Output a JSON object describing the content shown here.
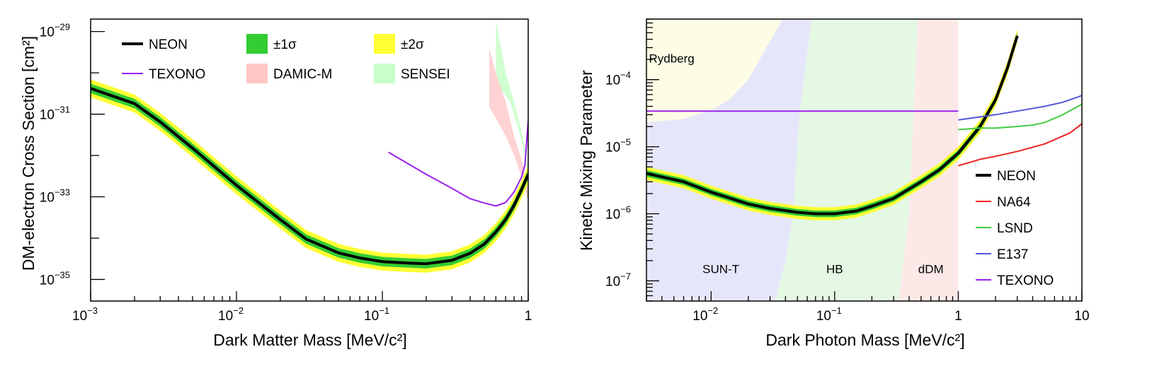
{
  "chart_data": [
    {
      "type": "line",
      "xlabel": "Dark Matter Mass [MeV/c²]",
      "ylabel": "DM-electron Cross Section [cm²]",
      "xscale": "log",
      "yscale": "log",
      "xlim": [
        0.001,
        1
      ],
      "ylim": [
        3e-36,
        2e-29
      ],
      "x_ticks": [
        {
          "v": 0.001,
          "base": "10",
          "exp": "−3"
        },
        {
          "v": 0.01,
          "base": "10",
          "exp": "−2"
        },
        {
          "v": 0.1,
          "base": "10",
          "exp": "−1"
        },
        {
          "v": 1,
          "base": "1",
          "exp": ""
        }
      ],
      "y_ticks": [
        {
          "v": 1e-29,
          "base": "10",
          "exp": "−29"
        },
        {
          "v": 1e-31,
          "base": "10",
          "exp": "−31"
        },
        {
          "v": 1e-33,
          "base": "10",
          "exp": "−33"
        },
        {
          "v": 1e-35,
          "base": "10",
          "exp": "−35"
        }
      ],
      "legend": {
        "placement": "top",
        "entries": [
          {
            "key": "neon",
            "label": "NEON",
            "kind": "line",
            "color": "#000000"
          },
          {
            "key": "s1",
            "label": "±1σ",
            "kind": "box",
            "color": "#33cc33"
          },
          {
            "key": "s2",
            "label": "±2σ",
            "kind": "box",
            "color": "#ffff33"
          },
          {
            "key": "texono",
            "label": "TEXONO",
            "kind": "line",
            "color": "#9922ee"
          },
          {
            "key": "damic",
            "label": "DAMIC-M",
            "kind": "box",
            "color": "#ffc8c8"
          },
          {
            "key": "sensei",
            "label": "SENSEI",
            "kind": "box",
            "color": "#c8ffc8"
          }
        ]
      },
      "bands": [
        {
          "name": "SENSEI",
          "color": "#c8ffc8",
          "opacity": 0.85,
          "upper": [
            [
              0.6,
              2e-29
            ],
            [
              0.7,
              1e-30
            ],
            [
              0.8,
              2e-31
            ],
            [
              0.9,
              4e-32
            ],
            [
              1.0,
              5e-33
            ]
          ],
          "lower": [
            [
              1.0,
              3e-33
            ],
            [
              0.92,
              1.5e-32
            ],
            [
              0.85,
              5e-32
            ],
            [
              0.75,
              2e-31
            ],
            [
              0.65,
              4e-31
            ],
            [
              0.6,
              1e-30
            ]
          ]
        },
        {
          "name": "DAMIC-M",
          "color": "#ffc8c8",
          "opacity": 0.8,
          "upper": [
            [
              0.54,
              4e-30
            ],
            [
              0.6,
              1e-30
            ],
            [
              0.7,
              2e-31
            ],
            [
              0.8,
              3e-32
            ],
            [
              0.9,
              8e-33
            ],
            [
              1.0,
              1.5e-33
            ]
          ],
          "lower": [
            [
              1.0,
              8e-34
            ],
            [
              0.9,
              3e-33
            ],
            [
              0.8,
              1e-32
            ],
            [
              0.7,
              3e-32
            ],
            [
              0.6,
              8e-32
            ],
            [
              0.54,
              1.5e-31
            ]
          ]
        }
      ],
      "series": [
        {
          "name": "NEON",
          "color": "#000000",
          "x": [
            0.001,
            0.002,
            0.003,
            0.005,
            0.007,
            0.01,
            0.02,
            0.03,
            0.05,
            0.07,
            0.1,
            0.15,
            0.2,
            0.3,
            0.4,
            0.5,
            0.6,
            0.7,
            0.8,
            0.9,
            1.0
          ],
          "y": [
            4.2e-31,
            1.8e-31,
            6.5e-32,
            1.5e-32,
            5.5e-33,
            1.9e-33,
            2.8e-34,
            9.5e-35,
            4.4e-35,
            3.3e-35,
            2.7e-35,
            2.5e-35,
            2.4e-35,
            2.9e-35,
            4.3e-35,
            7.2e-35,
            1.4e-34,
            2.8e-34,
            6.2e-34,
            1.5e-33,
            3.5e-33
          ],
          "sigma1_factor": 1.3,
          "sigma2_factor": 1.65
        },
        {
          "name": "TEXONO",
          "color": "#9922ee",
          "x": [
            0.11,
            0.2,
            0.3,
            0.4,
            0.5,
            0.6,
            0.7,
            0.8,
            0.9,
            0.95,
            1.0
          ],
          "y": [
            1.2e-32,
            3.5e-33,
            1.6e-33,
            9e-34,
            7.1e-34,
            6e-34,
            7.3e-34,
            1.3e-33,
            3e-33,
            6e-33,
            7e-32
          ]
        }
      ]
    },
    {
      "type": "line",
      "xlabel": "Dark Photon Mass [MeV/c²]",
      "ylabel": "Kinetic Mixing Parameter",
      "xscale": "log",
      "yscale": "log",
      "xlim": [
        0.003,
        10
      ],
      "ylim": [
        5e-08,
        0.0008
      ],
      "x_ticks": [
        {
          "v": 0.01,
          "base": "10",
          "exp": "−2"
        },
        {
          "v": 0.1,
          "base": "10",
          "exp": "−1"
        },
        {
          "v": 1,
          "base": "1",
          "exp": ""
        },
        {
          "v": 10,
          "base": "10",
          "exp": ""
        }
      ],
      "y_ticks": [
        {
          "v": 0.0001,
          "base": "10",
          "exp": "−4"
        },
        {
          "v": 1e-05,
          "base": "10",
          "exp": "−5"
        },
        {
          "v": 1e-06,
          "base": "10",
          "exp": "−6"
        },
        {
          "v": 1e-07,
          "base": "10",
          "exp": "−7"
        }
      ],
      "legend": {
        "placement": "bottom-right",
        "entries": [
          {
            "key": "neon",
            "label": "NEON",
            "kind": "line",
            "color": "#000000"
          },
          {
            "key": "na64",
            "label": "NA64",
            "kind": "line",
            "color": "#ee2222"
          },
          {
            "key": "lsnd",
            "label": "LSND",
            "kind": "line",
            "color": "#44cc44"
          },
          {
            "key": "e137",
            "label": "E137",
            "kind": "line",
            "color": "#5555dd"
          },
          {
            "key": "texono",
            "label": "TEXONO",
            "kind": "line",
            "color": "#9922ee"
          }
        ]
      },
      "regions": [
        {
          "name": "SUN-T",
          "label": "SUN-T",
          "color": "#e6e6fa",
          "points": [
            [
              0.003,
              5e-08
            ],
            [
              0.033,
              5e-08
            ],
            [
              0.04,
              2e-07
            ],
            [
              0.046,
              1e-06
            ],
            [
              0.052,
              3e-05
            ],
            [
              0.065,
              0.0008
            ],
            [
              0.003,
              0.0008
            ]
          ],
          "label_at": [
            0.012,
            1.3e-07
          ]
        },
        {
          "name": "Rydberg",
          "label": "Rydberg",
          "color": "#fdfde6",
          "points": [
            [
              0.003,
              0.0008
            ],
            [
              0.003,
              2.3e-05
            ],
            [
              0.006,
              2.6e-05
            ],
            [
              0.01,
              3.5e-05
            ],
            [
              0.014,
              5e-05
            ],
            [
              0.02,
              0.0001
            ],
            [
              0.028,
              0.0003
            ],
            [
              0.038,
              0.0008
            ]
          ],
          "label_at": [
            0.0048,
            0.00018
          ]
        },
        {
          "name": "HB",
          "label": "HB",
          "color": "#e4f8e4",
          "points": [
            [
              0.033,
              5e-08
            ],
            [
              0.33,
              5e-08
            ],
            [
              0.4,
              1e-06
            ],
            [
              0.47,
              0.0008
            ],
            [
              0.065,
              0.0008
            ],
            [
              0.052,
              3e-05
            ],
            [
              0.046,
              1e-06
            ],
            [
              0.04,
              2e-07
            ]
          ],
          "label_at": [
            0.1,
            1.3e-07
          ]
        },
        {
          "name": "dDM",
          "label": "dDM",
          "color": "#fde8e8",
          "points": [
            [
              0.33,
              5e-08
            ],
            [
              1.0,
              5e-08
            ],
            [
              1.0,
              0.0008
            ],
            [
              0.47,
              0.0008
            ],
            [
              0.4,
              1e-06
            ]
          ],
          "label_at": [
            0.6,
            1.3e-07
          ]
        }
      ],
      "series": [
        {
          "name": "NEON",
          "color": "#000000",
          "x": [
            0.003,
            0.006,
            0.01,
            0.02,
            0.03,
            0.05,
            0.07,
            0.1,
            0.15,
            0.2,
            0.3,
            0.5,
            0.7,
            1.0,
            1.5,
            2.0,
            2.5,
            3.0
          ],
          "y": [
            4e-06,
            3e-06,
            2.1e-06,
            1.4e-06,
            1.2e-06,
            1.05e-06,
            1e-06,
            1e-06,
            1.1e-06,
            1.3e-06,
            1.7e-06,
            3e-06,
            4.5e-06,
            8e-06,
            2e-05,
            5e-05,
            0.00015,
            0.00045
          ],
          "sigma1_factor": 1.12,
          "sigma2_factor": 1.25
        },
        {
          "name": "NA64",
          "color": "#ee2222",
          "x": [
            1.0,
            1.5,
            2.0,
            3.0,
            5.0,
            8.0,
            10.0
          ],
          "y": [
            5.2e-06,
            6.5e-06,
            7.2e-06,
            8.5e-06,
            1.1e-05,
            1.6e-05,
            2.2e-05
          ]
        },
        {
          "name": "LSND",
          "color": "#44cc44",
          "x": [
            1.0,
            1.5,
            2.0,
            3.0,
            4.0,
            5.0,
            7.0,
            10.0
          ],
          "y": [
            1.8e-05,
            1.9e-05,
            1.9e-05,
            2e-05,
            2.1e-05,
            2.3e-05,
            3e-05,
            4.3e-05
          ]
        },
        {
          "name": "E137",
          "color": "#5555dd",
          "x": [
            1.0,
            2.0,
            3.0,
            5.0,
            7.0,
            10.0
          ],
          "y": [
            2.5e-05,
            3e-05,
            3.4e-05,
            4e-05,
            4.6e-05,
            5.8e-05
          ]
        },
        {
          "name": "TEXONO",
          "color": "#9922ee",
          "x": [
            0.003,
            1.0
          ],
          "y": [
            3.4e-05,
            3.4e-05
          ]
        }
      ]
    }
  ]
}
